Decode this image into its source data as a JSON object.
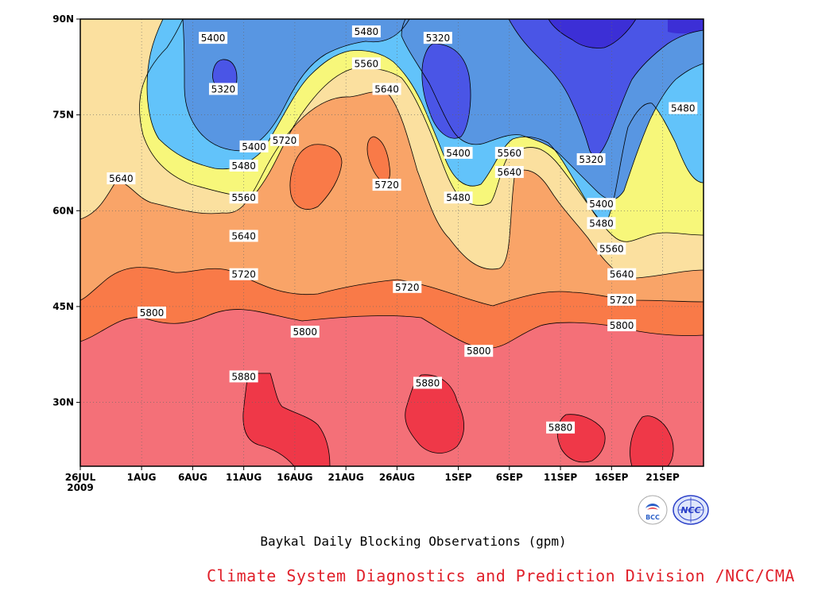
{
  "chart_data": {
    "type": "contour",
    "title": "Baykal Daily Blocking Observations (gpm)",
    "x_tick_labels": [
      "26JUL",
      "1AUG",
      "6AUG",
      "11AUG",
      "16AUG",
      "21AUG",
      "26AUG",
      "1SEP",
      "6SEP",
      "11SEP",
      "16SEP",
      "21SEP"
    ],
    "x_start_year": "2009",
    "y_tick_labels": [
      "30N",
      "45N",
      "60N",
      "75N",
      "90N"
    ],
    "ylim": [
      20,
      90
    ],
    "xlim": [
      "2009-07-26",
      "2009-09-25"
    ],
    "contour_levels": [
      5320,
      5400,
      5480,
      5560,
      5640,
      5720,
      5800,
      5880
    ],
    "fill_colors": {
      "lt5320": "#3c2fd6",
      "5320_5400": "#4a55e6",
      "5400_5480": "#5896e2",
      "5480_5560": "#62c3fa",
      "5560_5640": "#f7f77a",
      "5640_5720": "#fbe09f",
      "5720_5800": "#f9a468",
      "5800_5880": "#f97a48",
      "5880_5960": "#f47078",
      "gt5960": "#ef3848"
    },
    "contour_labels": [
      {
        "text": "5400",
        "date": "2009-08-08",
        "lat": 87
      },
      {
        "text": "5320",
        "date": "2009-08-09",
        "lat": 79
      },
      {
        "text": "5400",
        "date": "2009-08-12",
        "lat": 70
      },
      {
        "text": "5480",
        "date": "2009-08-11",
        "lat": 67
      },
      {
        "text": "5560",
        "date": "2009-08-11",
        "lat": 62
      },
      {
        "text": "5640",
        "date": "2009-08-11",
        "lat": 56
      },
      {
        "text": "5640",
        "date": "2009-07-30",
        "lat": 65
      },
      {
        "text": "5720",
        "date": "2009-08-15",
        "lat": 71
      },
      {
        "text": "5720",
        "date": "2009-08-25",
        "lat": 64
      },
      {
        "text": "5480",
        "date": "2009-08-23",
        "lat": 88
      },
      {
        "text": "5560",
        "date": "2009-08-23",
        "lat": 83
      },
      {
        "text": "5640",
        "date": "2009-08-25",
        "lat": 79
      },
      {
        "text": "5320",
        "date": "2009-08-30",
        "lat": 87
      },
      {
        "text": "5400",
        "date": "2009-09-01",
        "lat": 69
      },
      {
        "text": "5480",
        "date": "2009-09-01",
        "lat": 62
      },
      {
        "text": "5560",
        "date": "2009-09-06",
        "lat": 69
      },
      {
        "text": "5640",
        "date": "2009-09-06",
        "lat": 66
      },
      {
        "text": "5320",
        "date": "2009-09-14",
        "lat": 68
      },
      {
        "text": "5400",
        "date": "2009-09-15",
        "lat": 61
      },
      {
        "text": "5480",
        "date": "2009-09-15",
        "lat": 58
      },
      {
        "text": "5560",
        "date": "2009-09-16",
        "lat": 54
      },
      {
        "text": "5640",
        "date": "2009-09-17",
        "lat": 50
      },
      {
        "text": "5720",
        "date": "2009-09-17",
        "lat": 46
      },
      {
        "text": "5800",
        "date": "2009-09-17",
        "lat": 42
      },
      {
        "text": "5480",
        "date": "2009-09-23",
        "lat": 76
      },
      {
        "text": "5720",
        "date": "2009-08-11",
        "lat": 50
      },
      {
        "text": "5800",
        "date": "2009-08-02",
        "lat": 44
      },
      {
        "text": "5800",
        "date": "2009-08-17",
        "lat": 41
      },
      {
        "text": "5720",
        "date": "2009-08-27",
        "lat": 48
      },
      {
        "text": "5800",
        "date": "2009-09-03",
        "lat": 38
      },
      {
        "text": "5880",
        "date": "2009-08-11",
        "lat": 34
      },
      {
        "text": "5880",
        "date": "2009-08-29",
        "lat": 33
      },
      {
        "text": "5880",
        "date": "2009-09-11",
        "lat": 26
      }
    ]
  },
  "footer": {
    "credit": "Climate System Diagnostics and Prediction Division /NCC/CMA"
  },
  "logos": [
    {
      "name": "bcc-logo",
      "text": "BCC"
    },
    {
      "name": "ncc-logo",
      "text": "NCC"
    }
  ]
}
